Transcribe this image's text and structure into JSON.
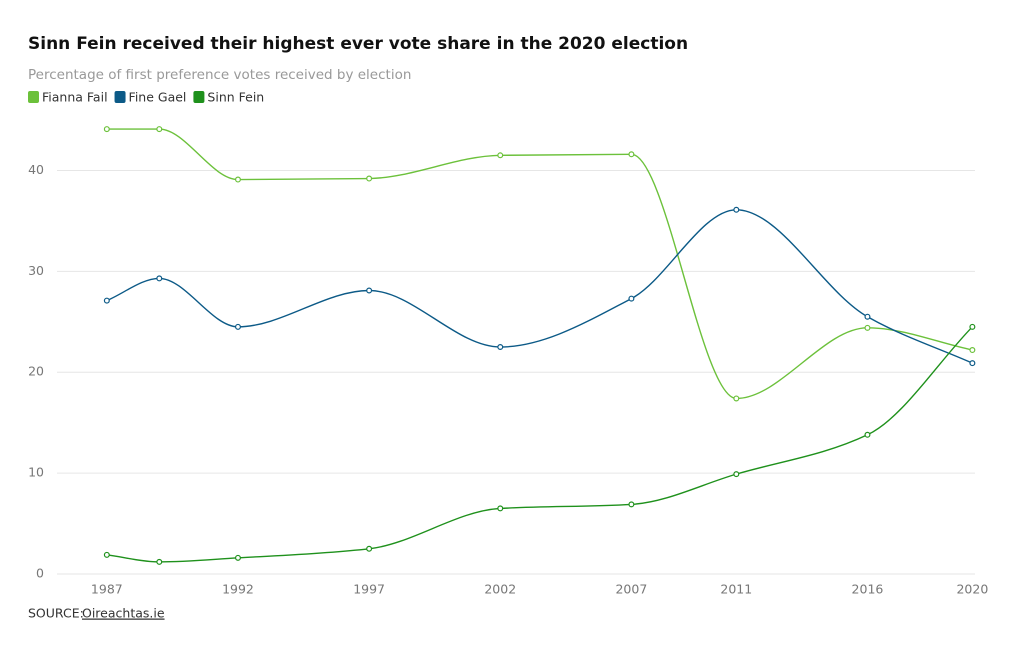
{
  "chart_data": {
    "type": "line",
    "title": "Sinn Fein received their highest ever vote share in the 2020 election",
    "subtitle": "Percentage of first preference votes received by election",
    "x": [
      1987,
      1989,
      1992,
      1997,
      2002,
      2007,
      2011,
      2016,
      2020
    ],
    "series": [
      {
        "name": "Fianna Fail",
        "color": "#6cc13b",
        "values": [
          44.1,
          44.1,
          39.1,
          39.2,
          41.5,
          41.6,
          17.4,
          24.4,
          22.2
        ]
      },
      {
        "name": "Fine Gael",
        "color": "#0c5a87",
        "values": [
          27.1,
          29.3,
          24.5,
          28.1,
          22.5,
          27.3,
          36.1,
          25.5,
          20.9
        ]
      },
      {
        "name": "Sinn Fein",
        "color": "#1f911c",
        "values": [
          1.9,
          1.2,
          1.6,
          2.5,
          6.5,
          6.9,
          9.9,
          13.8,
          24.5
        ]
      }
    ],
    "xlim": [
      1985.1,
      2020.1
    ],
    "xticks": [
      1987,
      1992,
      1997,
      2002,
      2007,
      2011,
      2016,
      2020
    ],
    "ylim": [
      0,
      45
    ],
    "yticks": [
      0,
      10,
      20,
      30,
      40
    ],
    "grid": true,
    "curve": "smooth",
    "source_label": "SOURCE:",
    "source_link": "Oireachtas.ie"
  }
}
